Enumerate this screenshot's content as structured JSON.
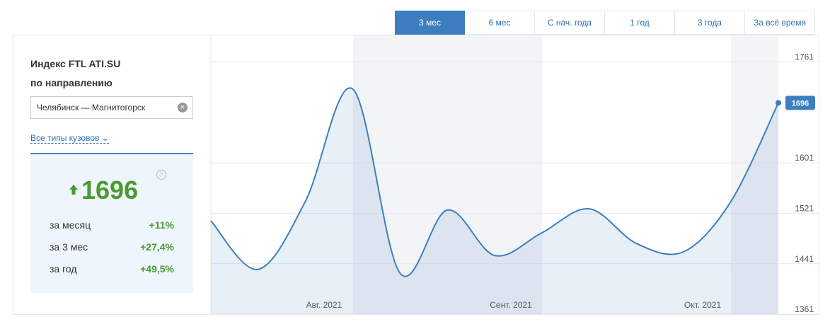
{
  "tabs": [
    "3 мес",
    "6 мес",
    "С нач. года",
    "1 год",
    "3 года",
    "За всё время"
  ],
  "active_tab": 0,
  "sidebar": {
    "title": "Индекс FTL ATI.SU",
    "subtitle": "по направлению",
    "route": "Челябинск — Магнитогорск",
    "body_types": "Все типы кузовов",
    "index_value": "1696",
    "stats": [
      {
        "label": "за месяц",
        "value": "+11%"
      },
      {
        "label": "за 3 мес",
        "value": "+27,4%"
      },
      {
        "label": "за год",
        "value": "+49,5%"
      }
    ]
  },
  "chart_data": {
    "type": "line",
    "categories": [
      null,
      null,
      null,
      null,
      null,
      null,
      null,
      null,
      null,
      null,
      null,
      null,
      null
    ],
    "series": [
      {
        "name": "Индекс FTL",
        "color": "#3d7ec0",
        "values": [
          1509,
          1432,
          1540,
          1718,
          1426,
          1526,
          1454,
          1490,
          1528,
          1473,
          1460,
          1540,
          1696
        ]
      }
    ],
    "x_axis_labels": [
      "Авг. 2021",
      "Сент. 2021",
      "Окт. 2021"
    ],
    "last_value_label": "1696",
    "ylim": [
      1361,
      1803
    ],
    "yticks": [
      1361,
      1441,
      1521,
      1601,
      1761
    ],
    "grid": true
  }
}
